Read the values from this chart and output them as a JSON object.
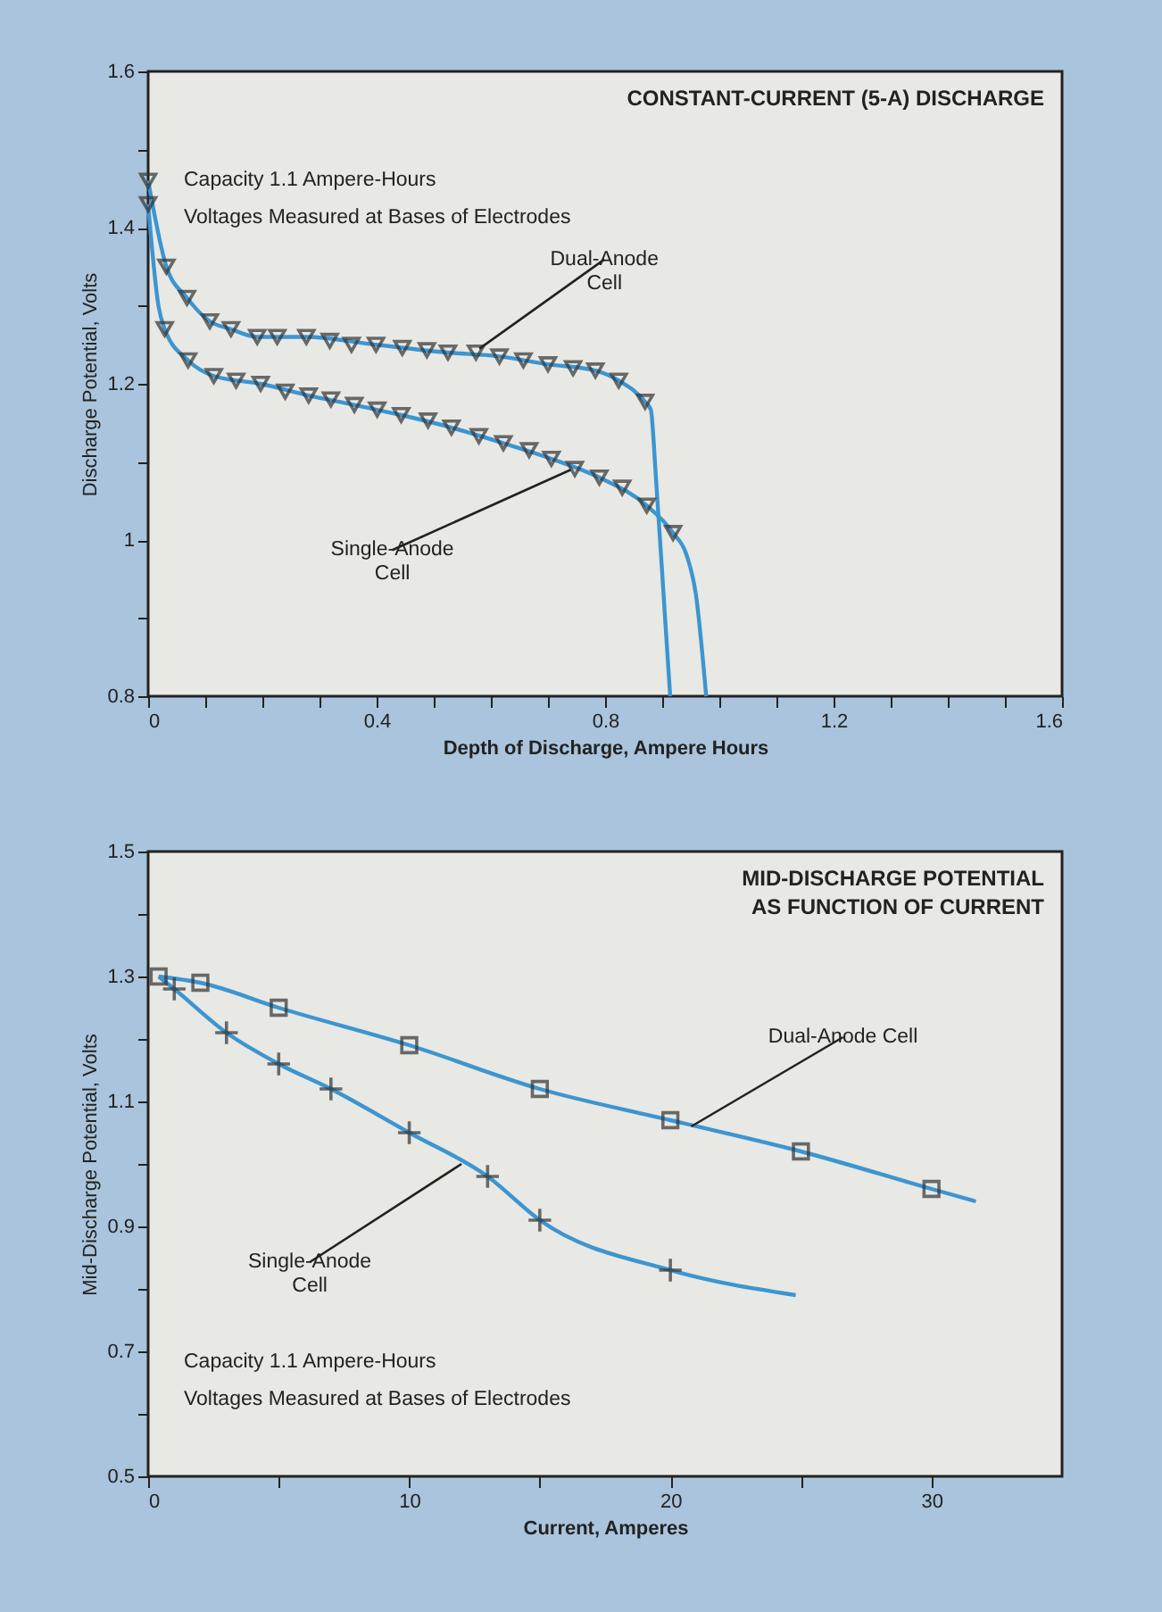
{
  "chart_data": [
    {
      "type": "line",
      "title": "CONSTANT-CURRENT (5-A) DISCHARGE",
      "xlabel": "Depth of Discharge, Ampere Hours",
      "ylabel": "Discharge Potential, Volts",
      "xlim": [
        0,
        1.6
      ],
      "ylim": [
        0.8,
        1.6
      ],
      "xticks": [
        0,
        {
          "value": 0.1,
          "label": null
        },
        {
          "value": 0.2,
          "label": null
        },
        {
          "value": 0.3,
          "label": null
        },
        0.4,
        {
          "value": 0.5,
          "label": null
        },
        {
          "value": 0.6,
          "label": null
        },
        {
          "value": 0.7,
          "label": null
        },
        0.8,
        {
          "value": 0.9,
          "label": null
        },
        {
          "value": 1.0,
          "label": null
        },
        {
          "value": 1.1,
          "label": null
        },
        1.2,
        {
          "value": 1.3,
          "label": null
        },
        {
          "value": 1.4,
          "label": null
        },
        {
          "value": 1.5,
          "label": null
        },
        1.6
      ],
      "yticks": [
        0.8,
        {
          "value": 0.9,
          "label": null
        },
        1,
        {
          "value": 1.1,
          "label": null
        },
        1.2,
        {
          "value": 1.3,
          "label": null
        },
        1.4,
        {
          "value": 1.5,
          "label": null
        },
        1.6
      ],
      "grid": false,
      "annotations": [
        "Capacity 1.1 Ampere-Hours",
        "Voltages Measured at Bases of Electrodes",
        {
          "text": "Dual-Anode\nCell",
          "x": 0.58,
          "y": 1.245
        },
        {
          "text": "Single-Anode\nCell",
          "x": 0.74,
          "y": 1.09
        }
      ],
      "series": [
        {
          "type": "line",
          "color": "#3d95d0",
          "marker": "none",
          "x": [
            0,
            0.032,
            0.068,
            0.108,
            0.145,
            0.191,
            0.277,
            0.399,
            0.525,
            0.615,
            0.7,
            0.783,
            0.824,
            0.87,
            0.88,
            0.889,
            0.905,
            0.914
          ],
          "values": [
            1.46,
            1.35,
            1.31,
            1.28,
            1.27,
            1.26,
            1.26,
            1.25,
            1.24,
            1.235,
            1.225,
            1.217,
            1.204,
            1.177,
            1.167,
            1.08,
            0.9,
            0.8
          ]
        },
        {
          "type": "line",
          "color": "#3d95d0",
          "marker": "none",
          "x": [
            0,
            0.018,
            0.029,
            0.07,
            0.115,
            0.197,
            0.281,
            0.361,
            0.443,
            0.531,
            0.622,
            0.706,
            0.79,
            0.873,
            0.919,
            0.943,
            0.959,
            0.977
          ],
          "values": [
            1.43,
            1.3,
            1.27,
            1.23,
            1.21,
            1.2,
            1.185,
            1.173,
            1.16,
            1.144,
            1.124,
            1.104,
            1.08,
            1.044,
            1.009,
            0.98,
            0.93,
            0.8
          ]
        },
        {
          "type": "scatter",
          "color": "#333333",
          "marker": "triangle",
          "x": [
            0,
            0.032,
            0.068,
            0.108,
            0.145,
            0.191,
            0.226,
            0.277,
            0.318,
            0.356,
            0.399,
            0.445,
            0.488,
            0.525,
            0.574,
            0.615,
            0.657,
            0.7,
            0.744,
            0.783,
            0.824,
            0.87
          ],
          "values": [
            1.46,
            1.35,
            1.31,
            1.28,
            1.27,
            1.26,
            1.26,
            1.26,
            1.255,
            1.25,
            1.25,
            1.246,
            1.243,
            1.24,
            1.24,
            1.235,
            1.23,
            1.225,
            1.22,
            1.217,
            1.204,
            1.177
          ]
        },
        {
          "type": "scatter",
          "color": "#333333",
          "marker": "triangle",
          "x": [
            0,
            0.029,
            0.07,
            0.115,
            0.154,
            0.197,
            0.24,
            0.281,
            0.32,
            0.361,
            0.401,
            0.443,
            0.49,
            0.531,
            0.579,
            0.622,
            0.667,
            0.706,
            0.747,
            0.79,
            0.83,
            0.873,
            0.919
          ],
          "values": [
            1.43,
            1.27,
            1.23,
            1.21,
            1.204,
            1.2,
            1.19,
            1.185,
            1.18,
            1.173,
            1.167,
            1.16,
            1.153,
            1.144,
            1.133,
            1.124,
            1.115,
            1.104,
            1.091,
            1.08,
            1.067,
            1.044,
            1.009
          ]
        }
      ]
    },
    {
      "type": "line",
      "title": "MID-DISCHARGE POTENTIAL\nAS FUNCTION OF CURRENT",
      "xlabel": "Current, Amperes",
      "ylabel": "Mid-Discharge Potential, Volts",
      "xlim": [
        0,
        35
      ],
      "ylim": [
        0.5,
        1.5
      ],
      "xticks": [
        0,
        {
          "value": 5,
          "label": null
        },
        10,
        {
          "value": 15,
          "label": null
        },
        20,
        {
          "value": 25,
          "label": null
        },
        30
      ],
      "yticks": [
        0.5,
        {
          "value": 0.6,
          "label": null
        },
        0.7,
        {
          "value": 0.8,
          "label": null
        },
        0.9,
        {
          "value": 1.0,
          "label": null
        },
        1.1,
        {
          "value": 1.2,
          "label": null
        },
        1.3,
        {
          "value": 1.4,
          "label": null
        },
        1.5
      ],
      "grid": false,
      "annotations": [
        "Capacity 1.1 Ampere-Hours",
        "Voltages Measured at Bases of Electrodes",
        {
          "text": "Dual-Anode Cell",
          "x": 20.8,
          "y": 1.06
        },
        {
          "text": "Single-Anode\nCell",
          "x": 12,
          "y": 1.0
        }
      ],
      "series": [
        {
          "type": "line",
          "color": "#3d95d0",
          "marker": "none",
          "x": [
            0.4,
            2,
            5,
            10,
            15,
            20,
            25,
            30,
            31.7
          ],
          "values": [
            1.3,
            1.29,
            1.25,
            1.19,
            1.12,
            1.07,
            1.02,
            0.96,
            0.94
          ]
        },
        {
          "type": "line",
          "color": "#3d95d0",
          "marker": "none",
          "x": [
            0.4,
            1,
            3,
            5,
            7,
            10,
            13,
            15,
            20,
            24.8
          ],
          "values": [
            1.3,
            1.28,
            1.21,
            1.16,
            1.12,
            1.05,
            0.98,
            0.91,
            0.83,
            0.79
          ]
        },
        {
          "type": "scatter",
          "color": "#333333",
          "marker": "square",
          "x": [
            0.4,
            2,
            5,
            10,
            15,
            20,
            25,
            30
          ],
          "values": [
            1.3,
            1.29,
            1.25,
            1.19,
            1.12,
            1.07,
            1.02,
            0.96
          ]
        },
        {
          "type": "scatter",
          "color": "#333333",
          "marker": "cross",
          "x": [
            1,
            3,
            5,
            7,
            10,
            13,
            15,
            20
          ],
          "values": [
            1.28,
            1.21,
            1.16,
            1.12,
            1.05,
            0.98,
            0.91,
            0.83
          ]
        }
      ]
    }
  ]
}
